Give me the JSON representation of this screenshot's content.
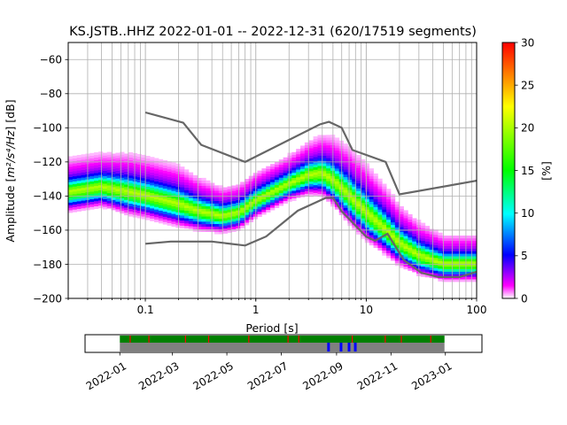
{
  "chart_data": {
    "type": "heatmap",
    "title": "KS.JSTB..HHZ   2022-01-01 -- 2022-12-31  (620/17519 segments)",
    "xlabel": "Period [s]",
    "ylabel_main": "Amplitude [",
    "ylabel_units": "m²/s⁴/Hz",
    "ylabel_end": "] [dB]",
    "x_scale": "log",
    "xlim": [
      0.02,
      100
    ],
    "ylim": [
      -200,
      -50
    ],
    "grid": true,
    "x_ticks": [
      {
        "value": 0.1,
        "label": "0.1"
      },
      {
        "value": 1,
        "label": "1"
      },
      {
        "value": 10,
        "label": "10"
      },
      {
        "value": 100,
        "label": "100"
      }
    ],
    "y_ticks": [
      {
        "value": -60,
        "label": "−60"
      },
      {
        "value": -80,
        "label": "−80"
      },
      {
        "value": -100,
        "label": "−100"
      },
      {
        "value": -120,
        "label": "−120"
      },
      {
        "value": -140,
        "label": "−140"
      },
      {
        "value": -160,
        "label": "−160"
      },
      {
        "value": -180,
        "label": "−180"
      },
      {
        "value": -200,
        "label": "−200"
      }
    ],
    "colorbar": {
      "label": "[%]",
      "range": [
        0,
        30
      ],
      "ticks": [
        {
          "value": 0,
          "label": "0"
        },
        {
          "value": 5,
          "label": "5"
        },
        {
          "value": 10,
          "label": "10"
        },
        {
          "value": 15,
          "label": "15"
        },
        {
          "value": 20,
          "label": "20"
        },
        {
          "value": 25,
          "label": "25"
        },
        {
          "value": 30,
          "label": "30"
        }
      ],
      "colors": [
        "#ffffff",
        "#ff00ff",
        "#0000ff",
        "#00ffff",
        "#00ff00",
        "#ffff00",
        "#ff0000"
      ]
    },
    "pdf_band": [
      {
        "period": 0.02,
        "center": -138,
        "width": 7
      },
      {
        "period": 0.04,
        "center": -135,
        "width": 7
      },
      {
        "period": 0.07,
        "center": -138,
        "width": 8
      },
      {
        "period": 0.1,
        "center": -140,
        "width": 8
      },
      {
        "period": 0.2,
        "center": -145,
        "width": 8
      },
      {
        "period": 0.3,
        "center": -149,
        "width": 7
      },
      {
        "period": 0.5,
        "center": -152,
        "width": 6
      },
      {
        "period": 0.7,
        "center": -150,
        "width": 6
      },
      {
        "period": 1,
        "center": -143,
        "width": 6
      },
      {
        "period": 2,
        "center": -133,
        "width": 6
      },
      {
        "period": 3,
        "center": -128,
        "width": 7
      },
      {
        "period": 4,
        "center": -127,
        "width": 8
      },
      {
        "period": 5,
        "center": -131,
        "width": 9
      },
      {
        "period": 7,
        "center": -140,
        "width": 10
      },
      {
        "period": 10,
        "center": -150,
        "width": 10
      },
      {
        "period": 15,
        "center": -160,
        "width": 9
      },
      {
        "period": 20,
        "center": -168,
        "width": 8
      },
      {
        "period": 30,
        "center": -175,
        "width": 7
      },
      {
        "period": 50,
        "center": -180,
        "width": 6
      },
      {
        "period": 100,
        "center": -180,
        "width": 6
      }
    ],
    "nhnm": [
      [
        0.1,
        -91
      ],
      [
        0.22,
        -97
      ],
      [
        0.32,
        -110
      ],
      [
        0.8,
        -120
      ],
      [
        3.8,
        -98
      ],
      [
        4.6,
        -96.5
      ],
      [
        6.0,
        -100
      ],
      [
        7.5,
        -113
      ],
      [
        15,
        -120
      ],
      [
        20,
        -139
      ],
      [
        100,
        -131
      ]
    ],
    "nlnm": [
      [
        0.1,
        -168
      ],
      [
        0.17,
        -166.7
      ],
      [
        0.4,
        -166.7
      ],
      [
        0.8,
        -169
      ],
      [
        1.24,
        -163.7
      ],
      [
        2.4,
        -148.6
      ],
      [
        4.3,
        -141.1
      ],
      [
        5,
        -141.1
      ],
      [
        6,
        -149
      ],
      [
        10,
        -163.8
      ],
      [
        12,
        -166.2
      ],
      [
        15.6,
        -162.1
      ],
      [
        21.9,
        -177.5
      ],
      [
        31.6,
        -185
      ],
      [
        45,
        -187.5
      ],
      [
        70,
        -187.5
      ],
      [
        100,
        -184.4
      ]
    ]
  },
  "timeline": {
    "date_ticks": [
      {
        "date": "2022-01-01",
        "label": "2022-01"
      },
      {
        "date": "2022-03-01",
        "label": "2022-03"
      },
      {
        "date": "2022-05-01",
        "label": "2022-05"
      },
      {
        "date": "2022-07-01",
        "label": "2022-07"
      },
      {
        "date": "2022-09-01",
        "label": "2022-09"
      },
      {
        "date": "2022-11-01",
        "label": "2022-11"
      },
      {
        "date": "2023-01-01",
        "label": "2023-01"
      }
    ],
    "xlim": [
      "2021-11-23",
      "2023-02-11"
    ],
    "data_range": [
      "2022-01-01",
      "2022-12-31"
    ],
    "availability_color": "#008000",
    "gap_color": "#ff0000",
    "used_color": "#808080",
    "highlight_color": "#0000ff",
    "gap_dates": [
      "2022-01-12",
      "2022-02-02",
      "2022-03-15",
      "2022-04-10",
      "2022-05-25",
      "2022-07-08",
      "2022-07-20",
      "2022-09-18",
      "2022-10-25",
      "2022-11-12",
      "2022-12-15"
    ],
    "highlight_dates": [
      "2022-08-23",
      "2022-09-06",
      "2022-09-15",
      "2022-09-22"
    ]
  }
}
